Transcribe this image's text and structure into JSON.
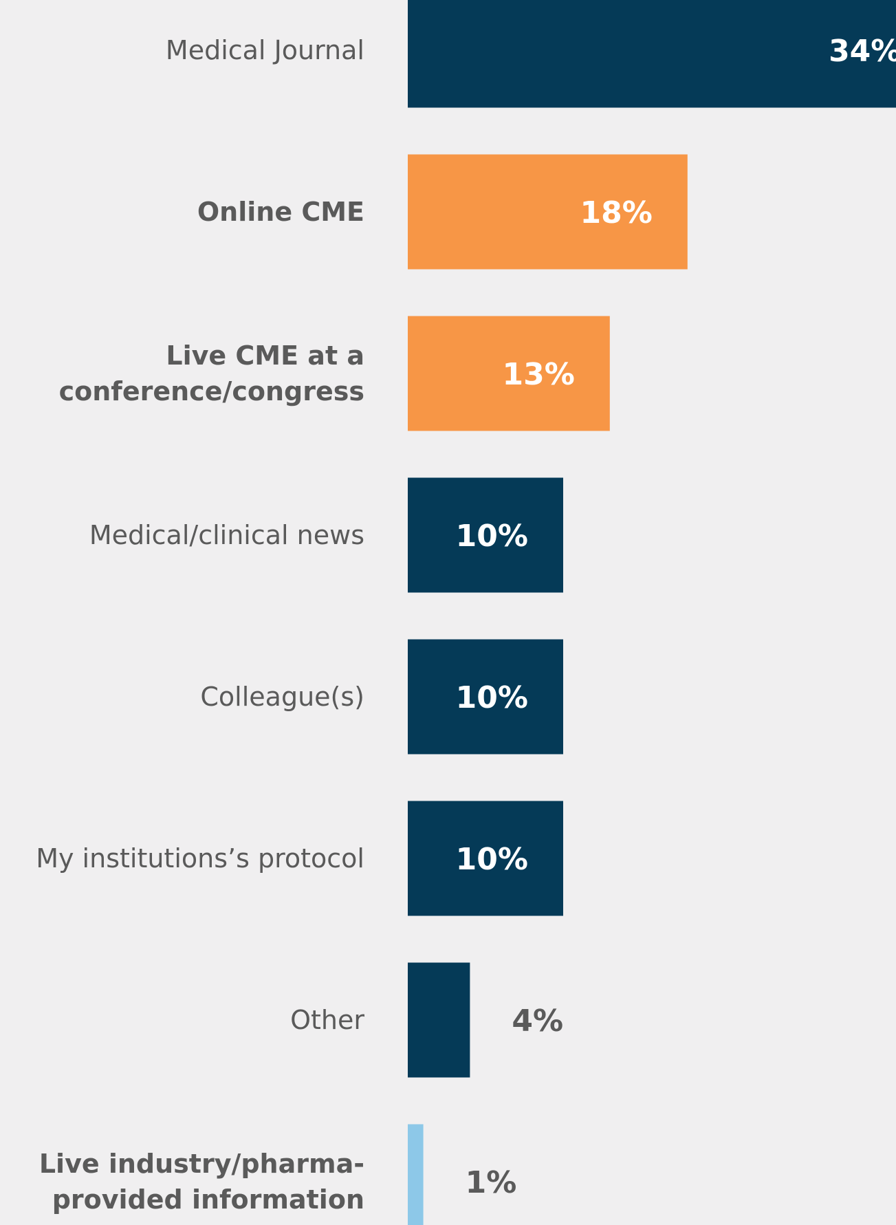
{
  "chart_data": {
    "type": "bar",
    "orientation": "horizontal",
    "categories": [
      "Medical Journal",
      "Online CME",
      "Live CME at a conference/congress",
      "Medical/clinical news",
      "Colleague(s)",
      "My institutions’s protocol",
      "Other",
      "Live industry/pharma-provided information"
    ],
    "values": [
      34,
      18,
      13,
      10,
      10,
      10,
      4,
      1
    ],
    "value_labels": [
      "34%",
      "18%",
      "13%",
      "10%",
      "10%",
      "10%",
      "4%",
      "1%"
    ],
    "colors": [
      "#053a57",
      "#f79646",
      "#f79646",
      "#053a57",
      "#053a57",
      "#053a57",
      "#053a57",
      "#8dc8e8"
    ],
    "label_bold": [
      false,
      true,
      true,
      false,
      false,
      false,
      false,
      true
    ],
    "xlim": [
      0,
      34
    ]
  }
}
